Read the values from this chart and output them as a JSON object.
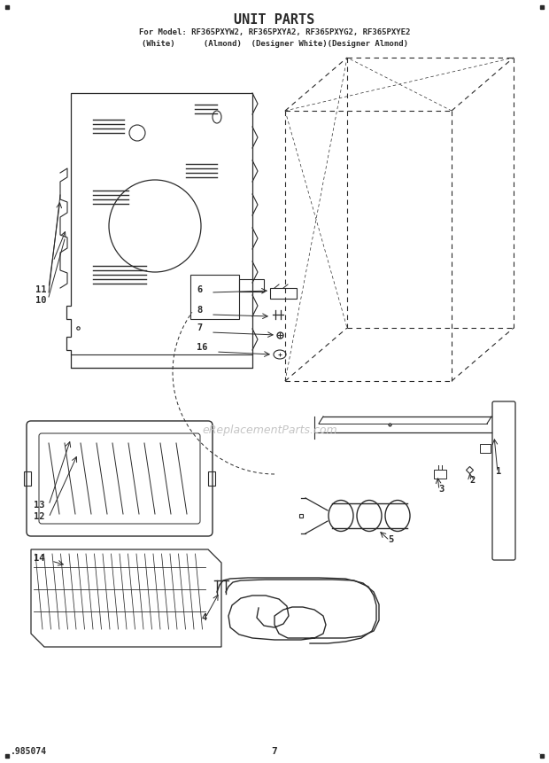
{
  "title": "UNIT PARTS",
  "subtitle_line1": "For Model: RF365PXYW2, RF365PXYA2, RF365PXYG2, RF365PXYE2",
  "subtitle_line2": "(White)      (Almond)  (Designer White)(Designer Almond)",
  "watermark": "eReplacementParts.com",
  "footer_left": ".985074",
  "footer_center": "7",
  "bg_color": "#ffffff",
  "line_color": "#2a2a2a"
}
